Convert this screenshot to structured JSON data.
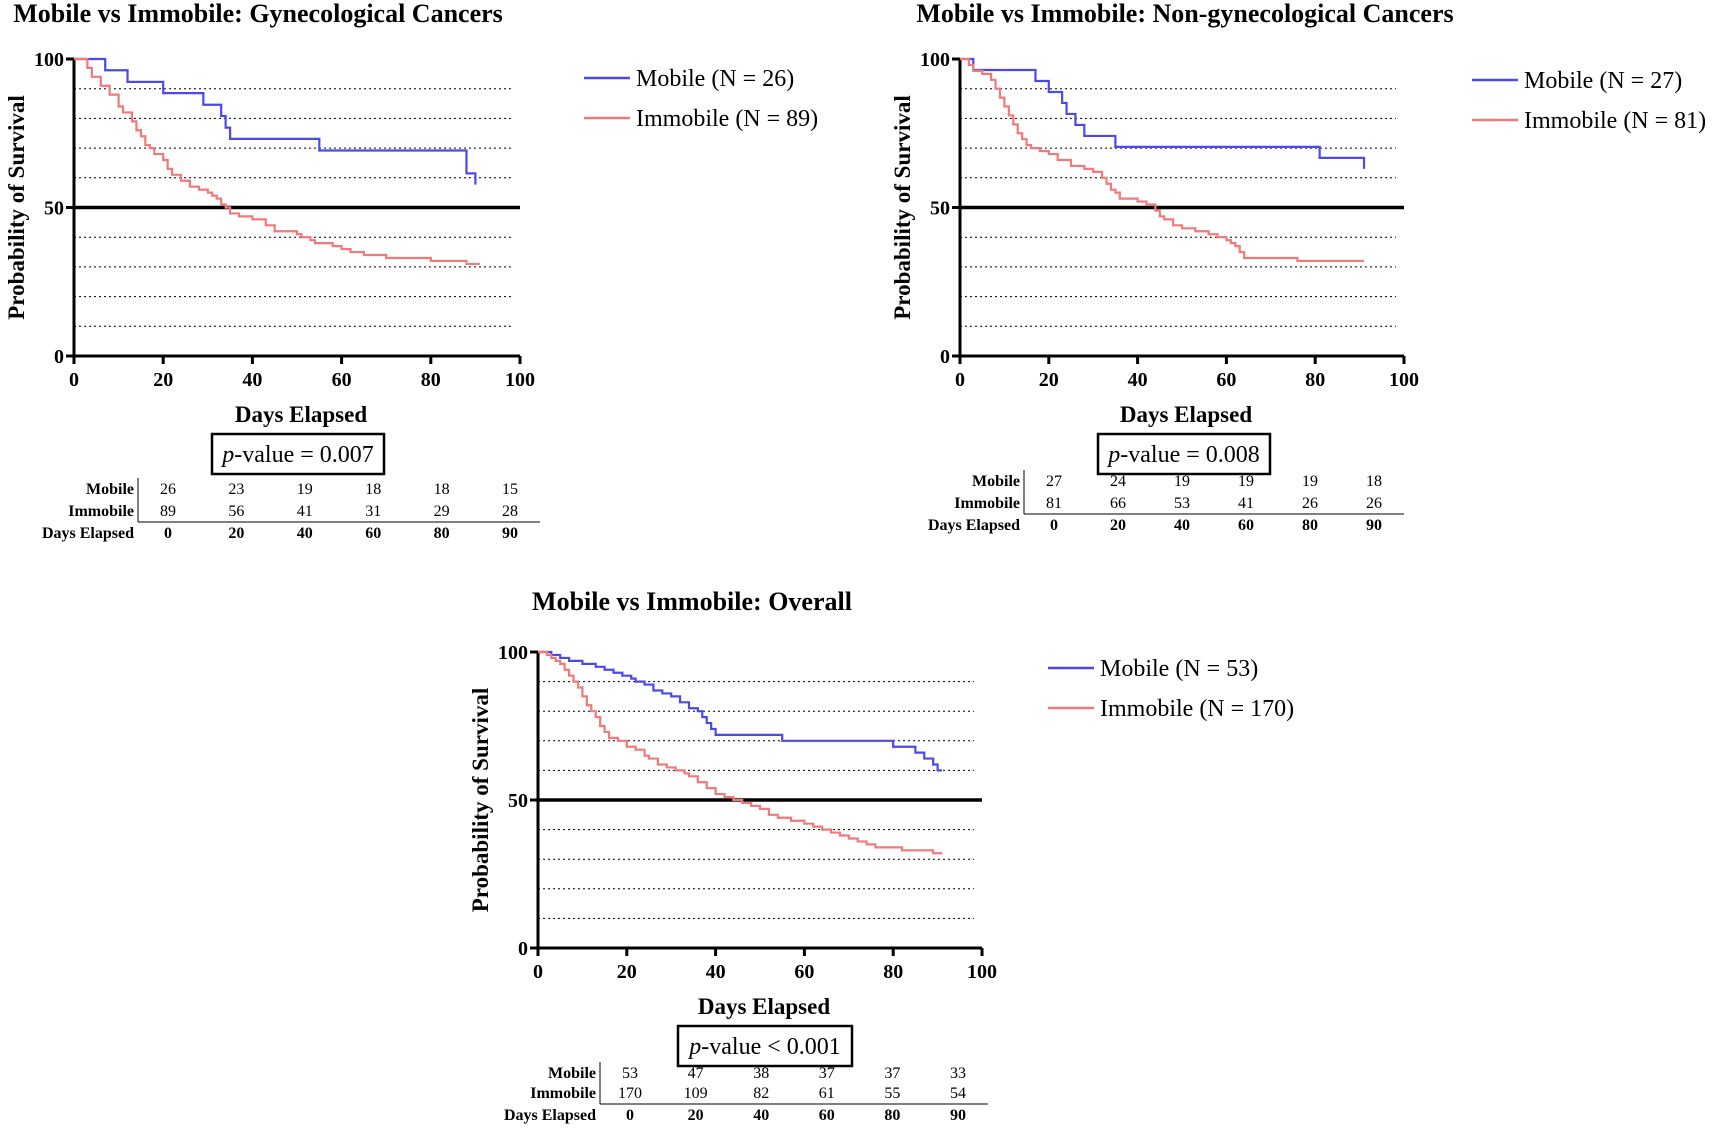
{
  "colors": {
    "mobile": "#4a4ae8",
    "immobile": "#f07a7a",
    "axis": "#000000"
  },
  "chart_data": [
    {
      "type": "line",
      "title": "Mobile vs Immobile: Gynecological Cancers",
      "xlabel": "Days Elapsed",
      "ylabel": "Probability of Survival",
      "xlim": [
        0,
        100
      ],
      "ylim": [
        0,
        100
      ],
      "x_ticks": [
        "0",
        "20",
        "40",
        "60",
        "80",
        "100"
      ],
      "y_ticks": [
        "0",
        "50",
        "100"
      ],
      "reference_line": 50,
      "grid": "dotted horizontal lines every 10",
      "legend_position": "right",
      "series": [
        {
          "name": "Mobile (N = 26)",
          "color": "#4a4ae8",
          "steps": [
            [
              0,
              100
            ],
            [
              7,
              96.2
            ],
            [
              12,
              92.3
            ],
            [
              20,
              88.5
            ],
            [
              29,
              84.6
            ],
            [
              33,
              80.8
            ],
            [
              34,
              76.9
            ],
            [
              35,
              73.1
            ],
            [
              55,
              69.2
            ],
            [
              88,
              61.5
            ],
            [
              90,
              57.7
            ]
          ],
          "end": 90
        },
        {
          "name": "Immobile (N = 89)",
          "color": "#f07a7a",
          "steps": [
            [
              0,
              100
            ],
            [
              3,
              97
            ],
            [
              4,
              94
            ],
            [
              6,
              91
            ],
            [
              8,
              88
            ],
            [
              10,
              84
            ],
            [
              11,
              82
            ],
            [
              13,
              79
            ],
            [
              14,
              76
            ],
            [
              15,
              74
            ],
            [
              16,
              71
            ],
            [
              17,
              70
            ],
            [
              18,
              68
            ],
            [
              20,
              66
            ],
            [
              21,
              63
            ],
            [
              22,
              61
            ],
            [
              24,
              59
            ],
            [
              26,
              57
            ],
            [
              28,
              56
            ],
            [
              30,
              55
            ],
            [
              31,
              54
            ],
            [
              32,
              53
            ],
            [
              33,
              51
            ],
            [
              34,
              50
            ],
            [
              35,
              48
            ],
            [
              37,
              47
            ],
            [
              40,
              46
            ],
            [
              43,
              44
            ],
            [
              45,
              42
            ],
            [
              50,
              41
            ],
            [
              51,
              40
            ],
            [
              53,
              39
            ],
            [
              54,
              38
            ],
            [
              58,
              37
            ],
            [
              60,
              36
            ],
            [
              62,
              35
            ],
            [
              65,
              34
            ],
            [
              70,
              33
            ],
            [
              77,
              33
            ],
            [
              80,
              32
            ],
            [
              87,
              32
            ],
            [
              88,
              31
            ]
          ],
          "end": 91
        }
      ],
      "p_label": "p",
      "p_rest": "-value = 0.007",
      "risk_table": {
        "rows": [
          {
            "label": "Mobile",
            "values": [
              "26",
              "23",
              "19",
              "18",
              "18",
              "15"
            ]
          },
          {
            "label": "Immobile",
            "values": [
              "89",
              "56",
              "41",
              "31",
              "29",
              "28"
            ]
          }
        ],
        "x_label": "Days Elapsed",
        "x_values": [
          "0",
          "20",
          "40",
          "60",
          "80",
          "90"
        ]
      }
    },
    {
      "type": "line",
      "title": "Mobile vs Immobile: Non-gynecological Cancers",
      "xlabel": "Days Elapsed",
      "ylabel": "Probability of Survival",
      "xlim": [
        0,
        100
      ],
      "ylim": [
        0,
        100
      ],
      "x_ticks": [
        "0",
        "20",
        "40",
        "60",
        "80",
        "100"
      ],
      "y_ticks": [
        "0",
        "50",
        "100"
      ],
      "reference_line": 50,
      "grid": "dotted horizontal lines every 10",
      "legend_position": "right",
      "series": [
        {
          "name": "Mobile (N = 27)",
          "color": "#4a4ae8",
          "steps": [
            [
              0,
              100
            ],
            [
              3,
              96.3
            ],
            [
              17,
              92.6
            ],
            [
              20,
              88.9
            ],
            [
              23,
              85.2
            ],
            [
              24,
              81.5
            ],
            [
              26,
              77.8
            ],
            [
              28,
              74.1
            ],
            [
              35,
              70.4
            ],
            [
              81,
              66.7
            ],
            [
              91,
              63
            ]
          ],
          "end": 91
        },
        {
          "name": "Immobile (N = 81)",
          "color": "#f07a7a",
          "steps": [
            [
              0,
              100
            ],
            [
              2,
              98
            ],
            [
              3,
              96
            ],
            [
              5,
              95
            ],
            [
              7,
              93
            ],
            [
              8,
              90
            ],
            [
              9,
              87
            ],
            [
              10,
              84
            ],
            [
              11,
              81
            ],
            [
              12,
              78
            ],
            [
              13,
              75
            ],
            [
              14,
              73
            ],
            [
              15,
              71
            ],
            [
              16,
              70
            ],
            [
              18,
              69
            ],
            [
              20,
              68
            ],
            [
              22,
              66
            ],
            [
              25,
              64
            ],
            [
              28,
              63
            ],
            [
              30,
              62
            ],
            [
              32,
              60
            ],
            [
              33,
              58
            ],
            [
              34,
              56
            ],
            [
              35,
              55
            ],
            [
              36,
              53
            ],
            [
              40,
              52
            ],
            [
              42,
              51
            ],
            [
              44,
              49
            ],
            [
              45,
              47
            ],
            [
              46,
              46
            ],
            [
              48,
              44
            ],
            [
              50,
              43
            ],
            [
              53,
              42
            ],
            [
              56,
              41
            ],
            [
              58,
              40
            ],
            [
              60,
              39
            ],
            [
              61,
              38
            ],
            [
              62,
              37
            ],
            [
              63,
              35
            ],
            [
              64,
              33
            ],
            [
              76,
              32
            ]
          ],
          "end": 91
        }
      ],
      "p_label": "p",
      "p_rest": "-value = 0.008",
      "risk_table": {
        "rows": [
          {
            "label": "Mobile",
            "values": [
              "27",
              "24",
              "19",
              "19",
              "19",
              "18"
            ]
          },
          {
            "label": "Immobile",
            "values": [
              "81",
              "66",
              "53",
              "41",
              "26",
              "26"
            ]
          }
        ],
        "x_label": "Days Elapsed",
        "x_values": [
          "0",
          "20",
          "40",
          "60",
          "80",
          "90"
        ]
      }
    },
    {
      "type": "line",
      "title": "Mobile vs Immobile: Overall",
      "xlabel": "Days Elapsed",
      "ylabel": "Probability of Survival",
      "xlim": [
        0,
        100
      ],
      "ylim": [
        0,
        100
      ],
      "x_ticks": [
        "0",
        "20",
        "40",
        "60",
        "80",
        "100"
      ],
      "y_ticks": [
        "0",
        "50",
        "100"
      ],
      "reference_line": 50,
      "grid": "dotted horizontal lines every 10",
      "legend_position": "right",
      "series": [
        {
          "name": "Mobile (N = 53)",
          "color": "#4a4ae8",
          "steps": [
            [
              0,
              100
            ],
            [
              3,
              99
            ],
            [
              5,
              98
            ],
            [
              7,
              97
            ],
            [
              10,
              96
            ],
            [
              13,
              95
            ],
            [
              15,
              94
            ],
            [
              17,
              93
            ],
            [
              19,
              92
            ],
            [
              21,
              91
            ],
            [
              22,
              90
            ],
            [
              24,
              89
            ],
            [
              26,
              87
            ],
            [
              28,
              86
            ],
            [
              30,
              85
            ],
            [
              32,
              83
            ],
            [
              34,
              81
            ],
            [
              36,
              80
            ],
            [
              37,
              78
            ],
            [
              38,
              76
            ],
            [
              39,
              74
            ],
            [
              40,
              72
            ],
            [
              55,
              70
            ],
            [
              80,
              68
            ],
            [
              85,
              66
            ],
            [
              87,
              64
            ],
            [
              89,
              62
            ],
            [
              90,
              60
            ]
          ],
          "end": 91
        },
        {
          "name": "Immobile (N = 170)",
          "color": "#f07a7a",
          "steps": [
            [
              0,
              100
            ],
            [
              2,
              99
            ],
            [
              3,
              98
            ],
            [
              4,
              97
            ],
            [
              5,
              96
            ],
            [
              6,
              94
            ],
            [
              7,
              92
            ],
            [
              8,
              90
            ],
            [
              9,
              88
            ],
            [
              10,
              85
            ],
            [
              11,
              82
            ],
            [
              12,
              80
            ],
            [
              13,
              78
            ],
            [
              14,
              75
            ],
            [
              15,
              73
            ],
            [
              16,
              71
            ],
            [
              18,
              70
            ],
            [
              20,
              68
            ],
            [
              22,
              67
            ],
            [
              24,
              65
            ],
            [
              25,
              64
            ],
            [
              27,
              62
            ],
            [
              29,
              61
            ],
            [
              31,
              60
            ],
            [
              33,
              59
            ],
            [
              34,
              58
            ],
            [
              36,
              56
            ],
            [
              38,
              54
            ],
            [
              40,
              52
            ],
            [
              42,
              51
            ],
            [
              44,
              50
            ],
            [
              46,
              49
            ],
            [
              48,
              48
            ],
            [
              50,
              47
            ],
            [
              52,
              45
            ],
            [
              54,
              44
            ],
            [
              57,
              43
            ],
            [
              60,
              42
            ],
            [
              62,
              41
            ],
            [
              64,
              40
            ],
            [
              66,
              39
            ],
            [
              68,
              38
            ],
            [
              70,
              37
            ],
            [
              72,
              36
            ],
            [
              74,
              35
            ],
            [
              76,
              34
            ],
            [
              78,
              34
            ],
            [
              82,
              33
            ],
            [
              86,
              33
            ],
            [
              89,
              32
            ]
          ],
          "end": 91
        }
      ],
      "p_label": "p",
      "p_rest": "-value < 0.001",
      "risk_table": {
        "rows": [
          {
            "label": "Mobile",
            "values": [
              "53",
              "47",
              "38",
              "37",
              "37",
              "33"
            ]
          },
          {
            "label": "Immobile",
            "values": [
              "170",
              "109",
              "82",
              "61",
              "55",
              "54"
            ]
          }
        ],
        "x_label": "Days Elapsed",
        "x_values": [
          "0",
          "20",
          "40",
          "60",
          "80",
          "90"
        ]
      }
    }
  ]
}
